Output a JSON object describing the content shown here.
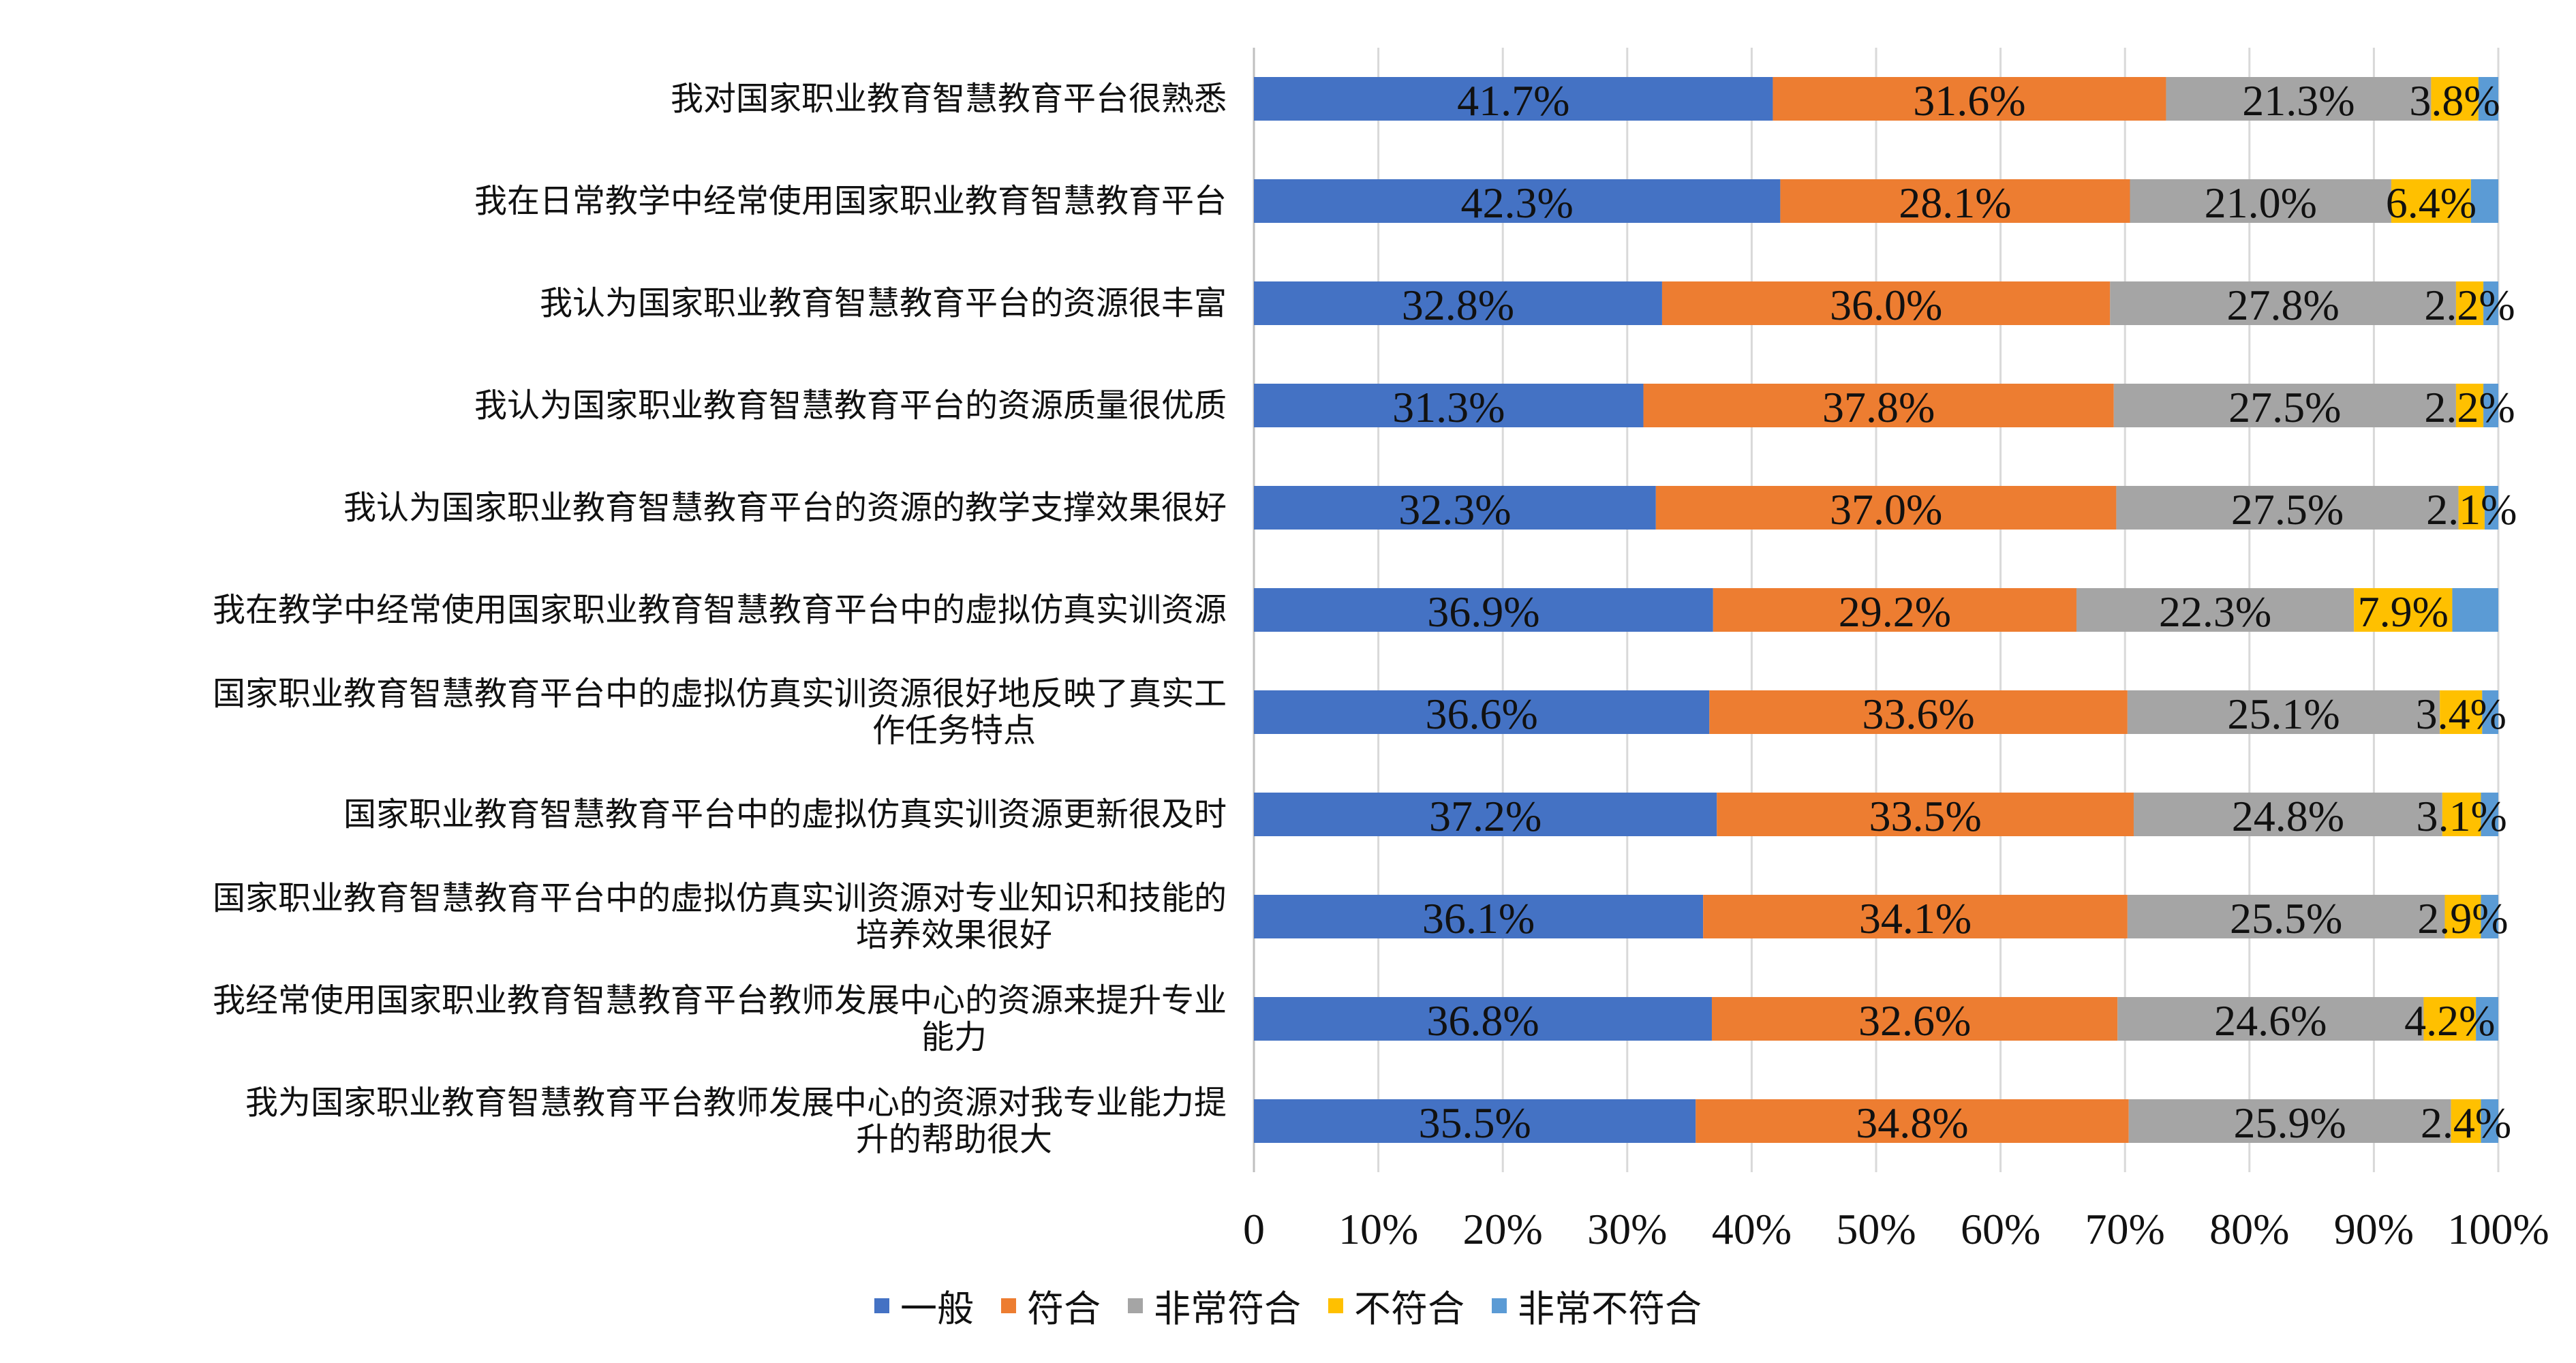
{
  "chart_data": {
    "type": "bar",
    "orientation": "horizontal",
    "stacked": true,
    "title": "",
    "xlabel": "",
    "ylabel": "",
    "xlim": [
      0,
      100
    ],
    "grid": "vertical",
    "legend_position": "bottom",
    "x_ticks": [
      "0",
      "10%",
      "20%",
      "30%",
      "40%",
      "50%",
      "60%",
      "70%",
      "80%",
      "90%",
      "100%"
    ],
    "categories": [
      [
        "我对国家职业教育智慧教育平台很熟悉"
      ],
      [
        "我在日常教学中经常使用国家职业教育智慧教育平台"
      ],
      [
        "我认为国家职业教育智慧教育平台的资源很丰富"
      ],
      [
        "我认为国家职业教育智慧教育平台的资源质量很优质"
      ],
      [
        "我认为国家职业教育智慧教育平台的资源的教学支撑效果很好"
      ],
      [
        "我在教学中经常使用国家职业教育智慧教育平台中的虚拟仿真实训资源"
      ],
      [
        "国家职业教育智慧教育平台中的虚拟仿真实训资源很好地反映了真实工",
        "作任务特点"
      ],
      [
        "国家职业教育智慧教育平台中的虚拟仿真实训资源更新很及时"
      ],
      [
        "国家职业教育智慧教育平台中的虚拟仿真实训资源对专业知识和技能的",
        "培养效果很好"
      ],
      [
        "我经常使用国家职业教育智慧教育平台教师发展中心的资源来提升专业",
        "能力"
      ],
      [
        "我为国家职业教育智慧教育平台教师发展中心的资源对我专业能力提",
        "升的帮助很大"
      ]
    ],
    "series": [
      {
        "name": "一般",
        "color": "#4472c4",
        "values": [
          41.7,
          42.3,
          32.8,
          31.3,
          32.3,
          36.9,
          36.6,
          37.2,
          36.1,
          36.8,
          35.5
        ],
        "labels": [
          "41.7%",
          "42.3%",
          "32.8%",
          "31.3%",
          "32.3%",
          "36.9%",
          "36.6%",
          "37.2%",
          "36.1%",
          "36.8%",
          "35.5%"
        ]
      },
      {
        "name": "符合",
        "color": "#ed7d31",
        "values": [
          31.6,
          28.1,
          36.0,
          37.8,
          37.0,
          29.2,
          33.6,
          33.5,
          34.1,
          32.6,
          34.8
        ],
        "labels": [
          "31.6%",
          "28.1%",
          "36.0%",
          "37.8%",
          "37.0%",
          "29.2%",
          "33.6%",
          "33.5%",
          "34.1%",
          "32.6%",
          "34.8%"
        ]
      },
      {
        "name": "非常符合",
        "color": "#a5a5a5",
        "values": [
          21.3,
          21.0,
          27.8,
          27.5,
          27.5,
          22.3,
          25.1,
          24.8,
          25.5,
          24.6,
          25.9
        ],
        "labels": [
          "21.3%",
          "21.0%",
          "27.8%",
          "27.5%",
          "27.5%",
          "22.3%",
          "25.1%",
          "24.8%",
          "25.5%",
          "24.6%",
          "25.9%"
        ]
      },
      {
        "name": "不符合",
        "color": "#ffc000",
        "values": [
          3.8,
          6.4,
          2.2,
          2.2,
          2.1,
          7.9,
          3.4,
          3.1,
          2.9,
          4.2,
          2.4
        ],
        "labels": [
          "3.8%",
          "6.4%",
          "2.2%",
          "2.2%",
          "2.1%",
          "7.9%",
          "3.4%",
          "3.1%",
          "2.9%",
          "4.2%",
          "2.4%"
        ]
      },
      {
        "name": "非常不符合",
        "color": "#5b9bd5",
        "values": [
          1.6,
          2.2,
          1.2,
          1.2,
          1.1,
          3.7,
          1.3,
          1.4,
          1.4,
          1.8,
          1.4
        ],
        "labels": []
      }
    ]
  }
}
